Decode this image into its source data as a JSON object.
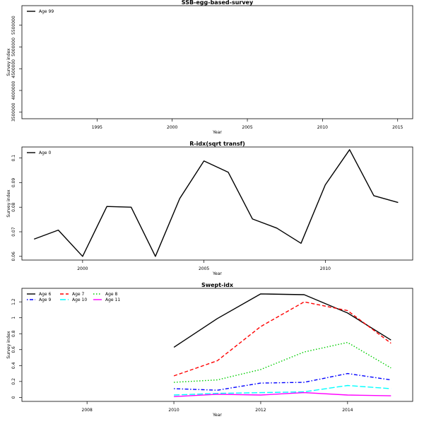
{
  "chart_data": [
    {
      "type": "line",
      "title": "SSB-egg-based-survey",
      "xlabel": "Year",
      "ylabel": "Survey index",
      "xlim": [
        1990,
        2016
      ],
      "ylim": [
        3350000,
        5950000
      ],
      "xticks": [
        1995,
        2000,
        2005,
        2010,
        2015
      ],
      "yticks": [
        3500000,
        4000000,
        4500000,
        5000000,
        5500000
      ],
      "legend_position": "top-left",
      "series": [
        {
          "name": "Age 99",
          "color": "#000000",
          "dash": "solid",
          "x": [],
          "y": []
        }
      ]
    },
    {
      "type": "line",
      "title": "R-idx(sqrt transf)",
      "xlabel": "Year",
      "ylabel": "Survey index",
      "xlim": [
        1997.5,
        2013.6
      ],
      "ylim": [
        0.0585,
        0.1045
      ],
      "xticks": [
        2000,
        2005,
        2010
      ],
      "yticks": [
        0.06,
        0.07,
        0.08,
        0.09,
        0.1
      ],
      "legend_position": "top-left",
      "series": [
        {
          "name": "Age 0",
          "color": "#000000",
          "dash": "solid",
          "x": [
            1998,
            1999,
            2000,
            2001,
            2002,
            2003,
            2004,
            2005,
            2006,
            2007,
            2008,
            2009,
            2010,
            2011,
            2012,
            2013
          ],
          "y": [
            0.067,
            0.0707,
            0.06,
            0.0803,
            0.08,
            0.06,
            0.0835,
            0.0988,
            0.0942,
            0.0752,
            0.0715,
            0.0653,
            0.0891,
            0.1034,
            0.0847,
            0.0819
          ]
        }
      ]
    },
    {
      "type": "line",
      "title": "Swept-idx",
      "xlabel": "Year",
      "ylabel": "Survey index",
      "xlim": [
        2006.5,
        2015.5
      ],
      "ylim": [
        -0.05,
        1.37
      ],
      "xticks": [
        2008,
        2010,
        2012,
        2014
      ],
      "yticks": [
        0.0,
        0.2,
        0.4,
        0.6,
        0.8,
        1.0,
        1.2
      ],
      "legend_position": "top-left",
      "series": [
        {
          "name": "Age 6",
          "color": "#000000",
          "dash": "solid",
          "x": [
            2010,
            2011,
            2012,
            2013,
            2014,
            2015
          ],
          "y": [
            0.63,
            0.99,
            1.3,
            1.29,
            1.06,
            0.72
          ]
        },
        {
          "name": "Age 7",
          "color": "#ff0000",
          "dash": "dashed",
          "x": [
            2010,
            2011,
            2012,
            2013,
            2014,
            2015
          ],
          "y": [
            0.27,
            0.46,
            0.89,
            1.2,
            1.09,
            0.68
          ]
        },
        {
          "name": "Age 8",
          "color": "#00cd00",
          "dash": "dotted",
          "x": [
            2010,
            2011,
            2012,
            2013,
            2014,
            2015
          ],
          "y": [
            0.19,
            0.22,
            0.35,
            0.57,
            0.69,
            0.37
          ]
        },
        {
          "name": "Age 9",
          "color": "#0000ff",
          "dash": "dotdash",
          "x": [
            2010,
            2011,
            2012,
            2013,
            2014,
            2015
          ],
          "y": [
            0.11,
            0.09,
            0.18,
            0.19,
            0.3,
            0.22
          ]
        },
        {
          "name": "Age 10",
          "color": "#00ffff",
          "dash": "longdash",
          "x": [
            2010,
            2011,
            2012,
            2013,
            2014,
            2015
          ],
          "y": [
            0.03,
            0.05,
            0.06,
            0.07,
            0.15,
            0.11
          ]
        },
        {
          "name": "Age 11",
          "color": "#ff00ff",
          "dash": "solid",
          "x": [
            2010,
            2011,
            2012,
            2013,
            2014,
            2015
          ],
          "y": [
            0.01,
            0.04,
            0.03,
            0.06,
            0.03,
            0.02
          ]
        }
      ]
    }
  ]
}
